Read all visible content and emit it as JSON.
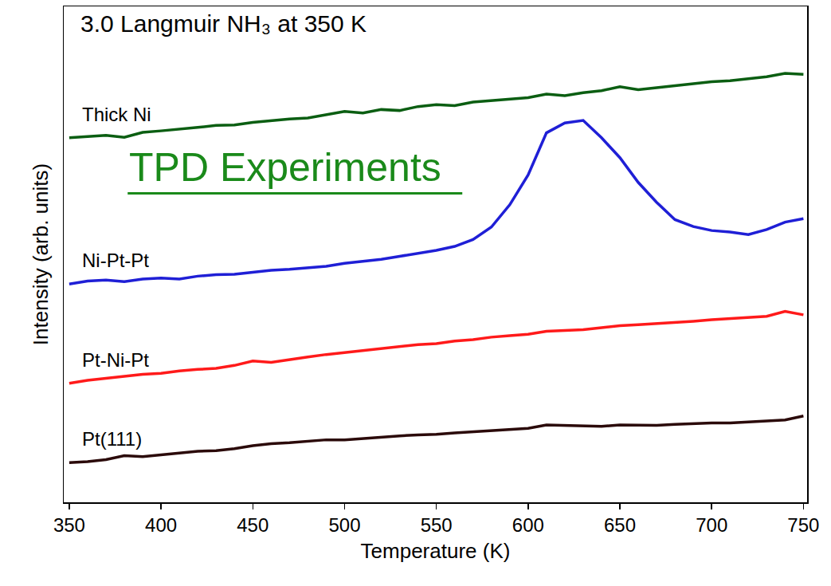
{
  "chart_data": {
    "type": "line",
    "title": "3.0 Langmuir NH₃ at 350 K",
    "subtitle": "TPD Experiments",
    "x_label": "Temperature (K)",
    "y_label": "Intensity (arb. units)",
    "x": [
      350,
      360,
      370,
      380,
      390,
      400,
      410,
      420,
      430,
      440,
      450,
      460,
      470,
      480,
      490,
      500,
      510,
      520,
      530,
      540,
      550,
      560,
      570,
      580,
      590,
      600,
      610,
      620,
      630,
      640,
      650,
      660,
      670,
      680,
      690,
      700,
      710,
      720,
      730,
      740,
      750
    ],
    "series": [
      {
        "name": "Thick Ni",
        "color": "#0b5e12",
        "values": [
          73.5,
          73.8,
          74.0,
          73.6,
          74.6,
          74.9,
          75.2,
          75.6,
          76.0,
          76.1,
          76.6,
          77.0,
          77.3,
          77.5,
          78.2,
          78.8,
          78.5,
          79.2,
          79.0,
          79.8,
          80.2,
          80.0,
          80.7,
          81.0,
          81.4,
          81.6,
          82.3,
          82.0,
          82.6,
          83.0,
          83.8,
          83.2,
          83.6,
          84.0,
          84.4,
          84.8,
          85.0,
          85.4,
          85.8,
          86.5,
          86.3
        ]
      },
      {
        "name": "Ni-Pt-Pt",
        "color": "#1f1fd6",
        "values": [
          44.0,
          44.6,
          44.8,
          44.5,
          45.0,
          45.2,
          45.0,
          45.6,
          45.9,
          46.0,
          46.4,
          46.8,
          47.0,
          47.3,
          47.6,
          48.2,
          48.6,
          49.0,
          49.6,
          50.2,
          50.8,
          51.6,
          53.0,
          55.5,
          60.0,
          66.0,
          74.5,
          76.5,
          77.0,
          73.5,
          69.5,
          64.5,
          60.5,
          57.0,
          55.6,
          54.8,
          54.5,
          54.0,
          55.0,
          56.5,
          57.2
        ]
      },
      {
        "name": "Pt-Ni-Pt",
        "color": "#ff1a1a",
        "values": [
          24.0,
          24.6,
          25.0,
          25.4,
          25.8,
          26.0,
          26.5,
          26.8,
          27.0,
          27.6,
          28.5,
          28.2,
          28.8,
          29.3,
          29.8,
          30.2,
          30.5,
          30.9,
          31.4,
          31.8,
          32.0,
          32.5,
          32.8,
          33.3,
          33.6,
          33.9,
          34.5,
          34.6,
          34.8,
          35.2,
          35.6,
          35.8,
          36.0,
          36.3,
          36.5,
          36.8,
          37.0,
          37.2,
          37.5,
          38.5,
          37.8
        ]
      },
      {
        "name": "Pt(111)",
        "color": "#2b0a0a",
        "values": [
          8.0,
          8.2,
          8.6,
          9.4,
          9.2,
          9.6,
          10.0,
          10.3,
          10.4,
          10.8,
          11.4,
          11.8,
          12.0,
          12.3,
          12.6,
          12.6,
          12.9,
          13.1,
          13.4,
          13.6,
          13.7,
          14.0,
          14.2,
          14.5,
          14.6,
          14.9,
          15.6,
          15.5,
          15.4,
          15.3,
          15.6,
          15.6,
          15.5,
          15.7,
          15.9,
          16.0,
          16.0,
          16.2,
          16.4,
          16.6,
          17.4
        ]
      }
    ],
    "xlim": [
      347,
      752
    ],
    "xticks": [
      350,
      400,
      450,
      500,
      550,
      600,
      650,
      700,
      750
    ],
    "ylim": [
      0,
      100
    ],
    "yticks": [],
    "tick_labels": "x",
    "grid": false
  }
}
